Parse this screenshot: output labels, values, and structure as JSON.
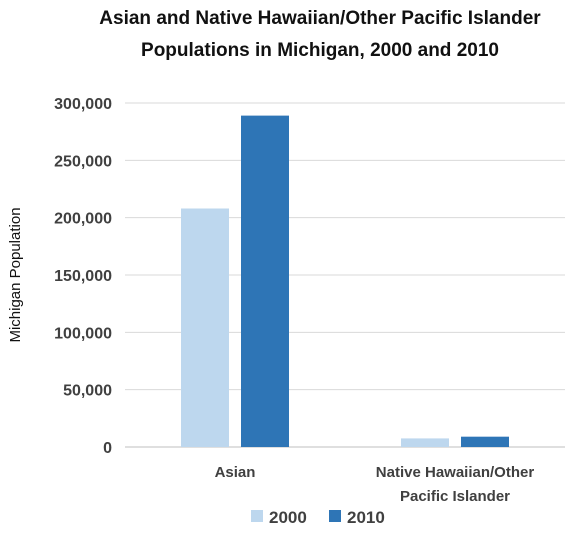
{
  "chart_data": {
    "type": "bar",
    "title_lines": [
      "Asian and Native Hawaiian/Other Pacific Islander",
      "Populations in Michigan, 2000 and 2010"
    ],
    "xlabel": "",
    "ylabel": "Michigan Population",
    "ylim": [
      0,
      300000
    ],
    "yticks": [
      0,
      50000,
      100000,
      150000,
      200000,
      250000,
      300000
    ],
    "ytick_labels": [
      "0",
      "50,000",
      "100,000",
      "150,000",
      "200,000",
      "250,000",
      "300,000"
    ],
    "categories": [
      [
        "Asian"
      ],
      [
        "Native Hawaiian/Other",
        "Pacific Islander"
      ]
    ],
    "series": [
      {
        "name": "2000",
        "color": "#bdd7ee",
        "values": [
          208000,
          7500
        ]
      },
      {
        "name": "2010",
        "color": "#2e75b6",
        "values": [
          289000,
          9000
        ]
      }
    ],
    "grid": true,
    "legend_position": "bottom"
  }
}
